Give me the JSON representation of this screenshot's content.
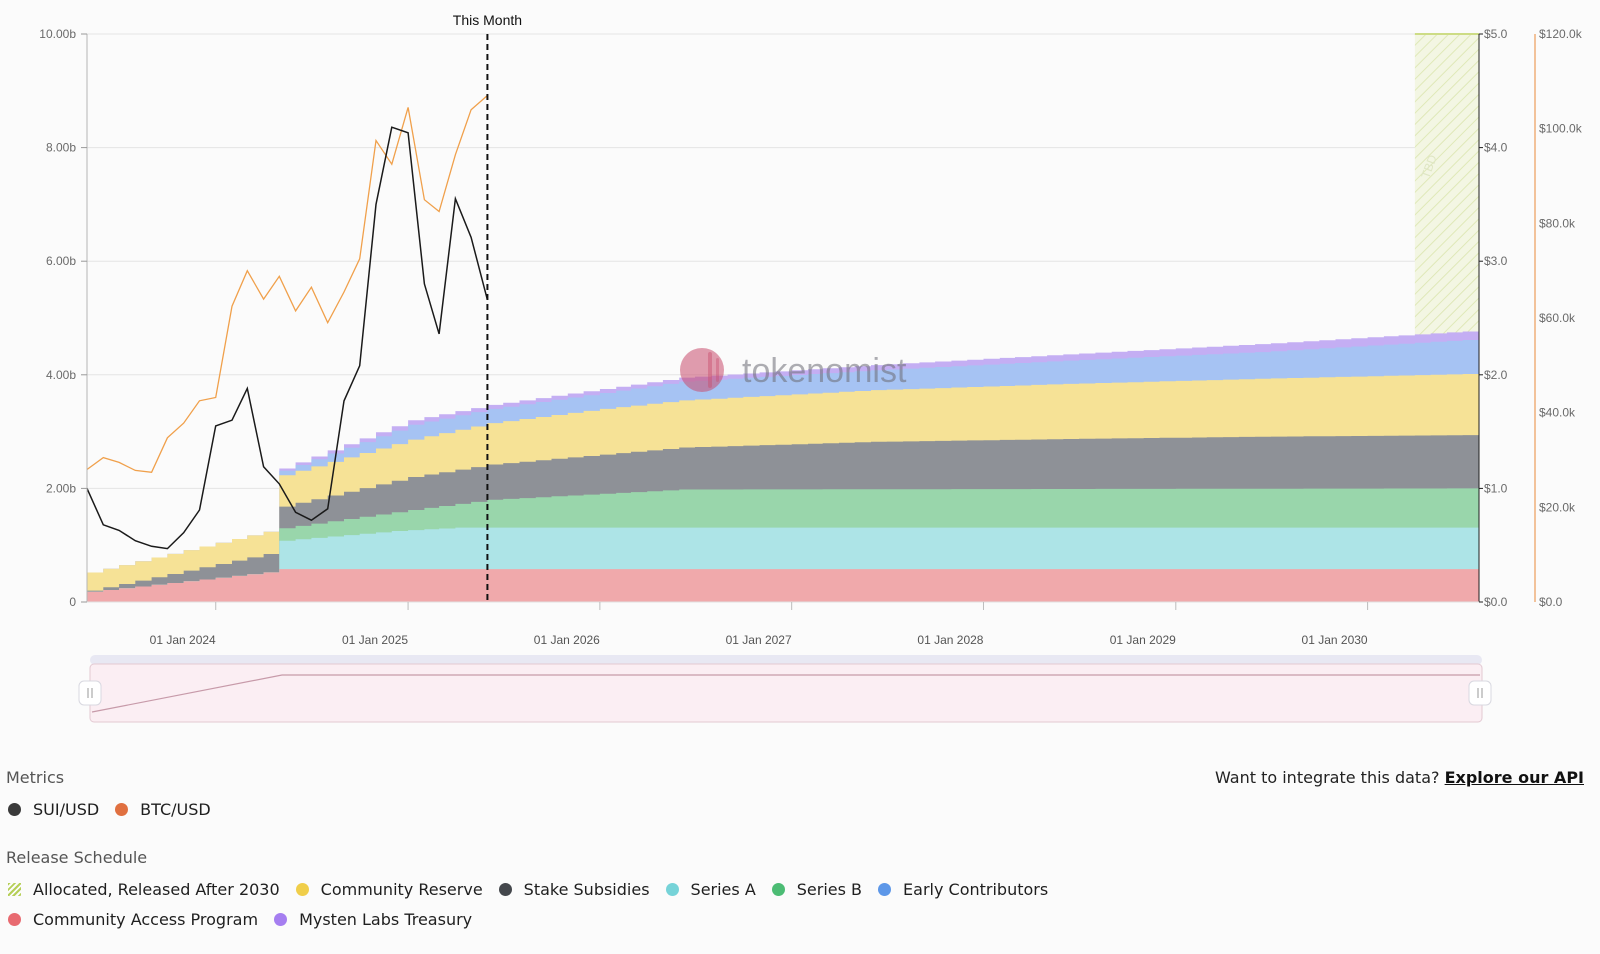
{
  "chart_data": {
    "type": "area",
    "marker_label": "This Month",
    "watermark": "tokenomist",
    "tbd_label": "TBD",
    "x_ticks": [
      "01 Jan 2024",
      "01 Jan 2025",
      "01 Jan 2026",
      "01 Jan 2027",
      "01 Jan 2028",
      "01 Jan 2029",
      "01 Jan 2030"
    ],
    "y_left": {
      "ticks": [
        "0",
        "2.00b",
        "4.00b",
        "6.00b",
        "8.00b",
        "10.00b"
      ],
      "range": [
        0,
        10
      ]
    },
    "y_right1": {
      "ticks": [
        "$0.0",
        "$1.0",
        "$2.0",
        "$3.0",
        "$4.0",
        "$5.0"
      ],
      "range": [
        0,
        5
      ]
    },
    "y_right2": {
      "ticks": [
        "$0.0",
        "$20.0k",
        "$40.0k",
        "$60.0k",
        "$80.0k",
        "$100.0k",
        "$120.0k"
      ],
      "range": [
        0,
        120
      ]
    },
    "x_range": [
      "2023-05-01",
      "2030-08-01"
    ],
    "this_month": "2025-06-01",
    "stack_series": [
      {
        "name": "Community Access Program",
        "color": "#f0a9ab",
        "points": [
          [
            "2023-05-01",
            0.18
          ],
          [
            "2024-04-30",
            0.55
          ],
          [
            "2024-05-01",
            0.58
          ],
          [
            "2030-08-01",
            0.58
          ]
        ]
      },
      {
        "name": "Series A",
        "color": "#ade4e7",
        "points": [
          [
            "2023-05-01",
            0.18
          ],
          [
            "2024-04-30",
            0.55
          ],
          [
            "2024-05-01",
            1.08
          ],
          [
            "2024-12-01",
            1.25
          ],
          [
            "2025-04-01",
            1.31
          ],
          [
            "2030-08-01",
            1.31
          ]
        ]
      },
      {
        "name": "Series B",
        "color": "#99d6ab",
        "points": [
          [
            "2023-05-01",
            0.18
          ],
          [
            "2024-04-30",
            0.55
          ],
          [
            "2024-05-01",
            1.3
          ],
          [
            "2025-01-01",
            1.62
          ],
          [
            "2025-06-01",
            1.8
          ],
          [
            "2026-06-01",
            1.98
          ],
          [
            "2030-08-01",
            2.0
          ]
        ]
      },
      {
        "name": "Stake Subsidies",
        "color": "#8e9197",
        "points": [
          [
            "2023-05-01",
            0.2
          ],
          [
            "2024-04-30",
            0.9
          ],
          [
            "2024-05-01",
            1.68
          ],
          [
            "2025-01-01",
            2.2
          ],
          [
            "2025-06-01",
            2.42
          ],
          [
            "2026-06-01",
            2.72
          ],
          [
            "2027-06-01",
            2.82
          ],
          [
            "2028-06-01",
            2.87
          ],
          [
            "2029-06-01",
            2.91
          ],
          [
            "2030-08-01",
            2.94
          ]
        ]
      },
      {
        "name": "Community Reserve",
        "color": "#f6e296",
        "points": [
          [
            "2023-05-01",
            0.52
          ],
          [
            "2024-04-30",
            1.3
          ],
          [
            "2024-05-01",
            2.23
          ],
          [
            "2025-01-01",
            2.86
          ],
          [
            "2025-06-01",
            3.15
          ],
          [
            "2026-01-01",
            3.4
          ],
          [
            "2026-06-01",
            3.55
          ],
          [
            "2027-06-01",
            3.73
          ],
          [
            "2028-06-01",
            3.84
          ],
          [
            "2029-06-01",
            3.93
          ],
          [
            "2030-08-01",
            4.02
          ]
        ]
      },
      {
        "name": "Early Contributors",
        "color": "#a6c3f3",
        "points": [
          [
            "2023-05-01",
            0.52
          ],
          [
            "2024-04-30",
            1.3
          ],
          [
            "2024-05-01",
            2.31
          ],
          [
            "2025-01-01",
            3.12
          ],
          [
            "2025-06-01",
            3.4
          ],
          [
            "2026-01-01",
            3.68
          ],
          [
            "2026-06-01",
            3.88
          ],
          [
            "2027-06-01",
            4.08
          ],
          [
            "2028-06-01",
            4.25
          ],
          [
            "2029-06-01",
            4.4
          ],
          [
            "2030-08-01",
            4.63
          ]
        ]
      },
      {
        "name": "Mysten Labs Treasury",
        "color": "#c4aef3",
        "points": [
          [
            "2023-05-01",
            0.52
          ],
          [
            "2024-04-30",
            1.3
          ],
          [
            "2024-05-01",
            2.35
          ],
          [
            "2025-01-01",
            3.2
          ],
          [
            "2025-06-01",
            3.47
          ],
          [
            "2026-01-01",
            3.75
          ],
          [
            "2026-06-01",
            3.95
          ],
          [
            "2027-06-01",
            4.17
          ],
          [
            "2028-06-01",
            4.36
          ],
          [
            "2029-06-01",
            4.54
          ],
          [
            "2030-08-01",
            4.78
          ]
        ]
      }
    ],
    "tbd_region": {
      "name": "Allocated, Released After 2030",
      "from": "2030-04-01",
      "to": "2030-08-01",
      "top": 10
    },
    "sui_usd": {
      "name": "SUI/USD",
      "color": "#1a1a1a",
      "points": [
        [
          "2023-05-01",
          1.0
        ],
        [
          "2023-06-01",
          0.68
        ],
        [
          "2023-07-01",
          0.63
        ],
        [
          "2023-08-01",
          0.54
        ],
        [
          "2023-09-01",
          0.49
        ],
        [
          "2023-10-01",
          0.47
        ],
        [
          "2023-11-01",
          0.61
        ],
        [
          "2023-12-01",
          0.81
        ],
        [
          "2024-01-01",
          1.55
        ],
        [
          "2024-02-01",
          1.6
        ],
        [
          "2024-03-01",
          1.88
        ],
        [
          "2024-04-01",
          1.19
        ],
        [
          "2024-05-01",
          1.04
        ],
        [
          "2024-06-01",
          0.79
        ],
        [
          "2024-07-01",
          0.72
        ],
        [
          "2024-08-01",
          0.82
        ],
        [
          "2024-09-01",
          1.77
        ],
        [
          "2024-10-01",
          2.08
        ],
        [
          "2024-11-01",
          3.5
        ],
        [
          "2024-12-01",
          4.18
        ],
        [
          "2025-01-01",
          4.13
        ],
        [
          "2025-02-01",
          2.8
        ],
        [
          "2025-03-01",
          2.36
        ],
        [
          "2025-04-01",
          3.55
        ],
        [
          "2025-05-01",
          3.21
        ],
        [
          "2025-06-01",
          2.66
        ]
      ]
    },
    "btc_usd": {
      "name": "BTC/USD",
      "color": "#f0a04b",
      "points": [
        [
          "2023-05-01",
          28.0
        ],
        [
          "2023-06-01",
          30.5
        ],
        [
          "2023-07-01",
          29.5
        ],
        [
          "2023-08-01",
          27.8
        ],
        [
          "2023-09-01",
          27.4
        ],
        [
          "2023-10-01",
          34.7
        ],
        [
          "2023-11-01",
          37.8
        ],
        [
          "2023-12-01",
          42.5
        ],
        [
          "2024-01-01",
          43.2
        ],
        [
          "2024-02-01",
          62.5
        ],
        [
          "2024-03-01",
          70.0
        ],
        [
          "2024-04-01",
          64.0
        ],
        [
          "2024-05-01",
          68.8
        ],
        [
          "2024-06-01",
          61.5
        ],
        [
          "2024-07-01",
          66.5
        ],
        [
          "2024-08-01",
          59.0
        ],
        [
          "2024-09-01",
          65.5
        ],
        [
          "2024-10-01",
          72.5
        ],
        [
          "2024-11-01",
          97.5
        ],
        [
          "2024-12-01",
          92.5
        ],
        [
          "2025-01-01",
          104.5
        ],
        [
          "2025-02-01",
          85.0
        ],
        [
          "2025-03-01",
          82.5
        ],
        [
          "2025-04-01",
          94.5
        ],
        [
          "2025-05-01",
          104.0
        ],
        [
          "2025-06-01",
          107.0
        ]
      ]
    }
  },
  "bottom": {
    "metrics_title": "Metrics",
    "api_prefix": "Want to integrate this data?",
    "api_link": "Explore our API",
    "metrics": [
      {
        "label": "SUI/USD",
        "color": "#3a3a3a"
      },
      {
        "label": "BTC/USD",
        "color": "#e07040"
      }
    ],
    "release_title": "Release Schedule",
    "release_row1": [
      {
        "label": "Allocated, Released After 2030",
        "color": "hatch"
      },
      {
        "label": "Community Reserve",
        "color": "#f0ce4a"
      },
      {
        "label": "Stake Subsidies",
        "color": "#44474c"
      },
      {
        "label": "Series A",
        "color": "#76d3d8"
      },
      {
        "label": "Series B",
        "color": "#4cbc74"
      },
      {
        "label": "Early Contributors",
        "color": "#5d97e8"
      }
    ],
    "release_row2": [
      {
        "label": "Community Access Program",
        "color": "#e86a70"
      },
      {
        "label": "Mysten Labs Treasury",
        "color": "#a57ef0"
      }
    ]
  }
}
